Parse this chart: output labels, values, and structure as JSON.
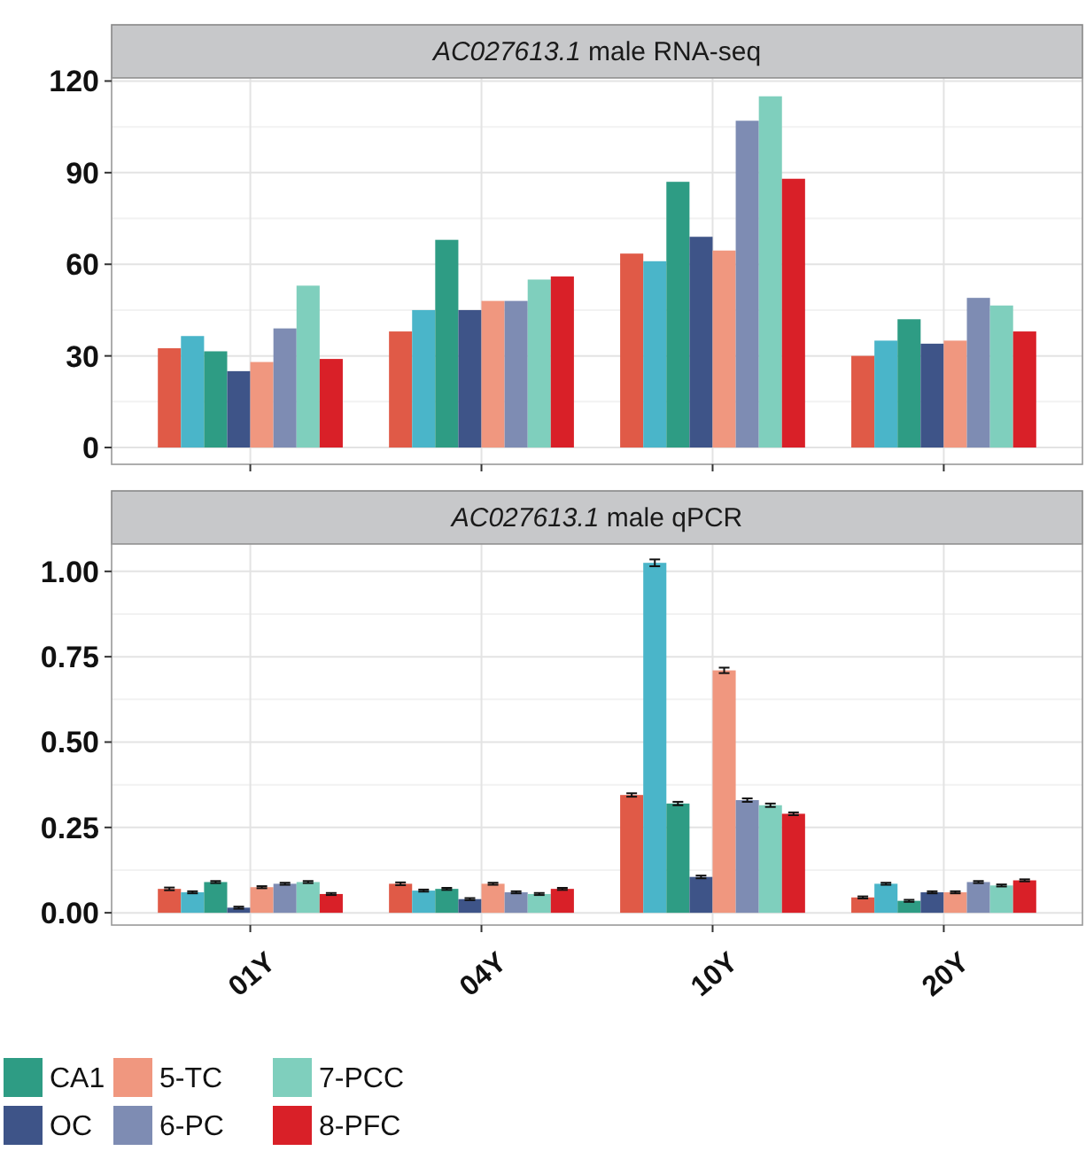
{
  "chart_data": [
    {
      "type": "bar",
      "title": "AC027613.1 male RNA-seq",
      "categories": [
        null,
        null,
        null,
        null
      ],
      "ylim": [
        -5.5,
        121
      ],
      "yticks": [
        0,
        30,
        60,
        90,
        120
      ],
      "grid": true,
      "tick_labels": "y",
      "series": [
        {
          "color": "#e05a47",
          "values": [
            32.5,
            38,
            63.5,
            30
          ]
        },
        {
          "color": "#4ab5c9",
          "values": [
            36.5,
            45,
            61,
            35
          ]
        },
        {
          "color": "#2e9c84",
          "values": [
            31.5,
            68,
            87,
            42
          ]
        },
        {
          "color": "#3e5488",
          "values": [
            25,
            45,
            69,
            34
          ]
        },
        {
          "color": "#f0977f",
          "values": [
            28,
            48,
            64.5,
            35
          ]
        },
        {
          "color": "#7e8cb3",
          "values": [
            39,
            48,
            107,
            49
          ]
        },
        {
          "color": "#7fcfbd",
          "values": [
            53,
            55,
            115,
            46.5
          ]
        },
        {
          "color": "#d92028",
          "values": [
            29,
            56,
            88,
            38
          ]
        }
      ]
    },
    {
      "type": "bar",
      "title": "AC027613.1 male qPCR",
      "categories": [
        "01Y",
        "04Y",
        "10Y",
        "20Y"
      ],
      "ylim": [
        -0.036,
        1.08
      ],
      "yticks": [
        {
          "value": 0,
          "label": "0.00"
        },
        {
          "value": 0.25,
          "label": "0.25"
        },
        {
          "value": 0.5,
          "label": "0.50"
        },
        {
          "value": 0.75,
          "label": "0.75"
        },
        {
          "value": 1,
          "label": "1.00"
        }
      ],
      "grid": true,
      "legend": "bottom left",
      "series": [
        {
          "color": "#e05a47",
          "values": [
            0.07,
            0.085,
            0.345,
            0.045
          ],
          "errors": [
            0.004,
            0.004,
            0.005,
            0.003
          ]
        },
        {
          "color": "#4ab5c9",
          "values": [
            0.06,
            0.065,
            1.025,
            0.085
          ],
          "errors": [
            0.003,
            0.003,
            0.01,
            0.003
          ]
        },
        {
          "name": "CA1",
          "color": "#2e9c84",
          "values": [
            0.09,
            0.07,
            0.32,
            0.035
          ],
          "errors": [
            0.003,
            0.003,
            0.005,
            0.003
          ]
        },
        {
          "name": "OC",
          "color": "#3e5488",
          "values": [
            0.015,
            0.04,
            0.105,
            0.06
          ],
          "errors": [
            0.003,
            0.003,
            0.004,
            0.003
          ]
        },
        {
          "name": "5-TC",
          "color": "#f0977f",
          "values": [
            0.075,
            0.085,
            0.71,
            0.06
          ],
          "errors": [
            0.003,
            0.003,
            0.008,
            0.003
          ]
        },
        {
          "name": "6-PC",
          "color": "#7e8cb3",
          "values": [
            0.085,
            0.06,
            0.33,
            0.09
          ],
          "errors": [
            0.003,
            0.003,
            0.005,
            0.003
          ]
        },
        {
          "name": "7-PCC",
          "color": "#7fcfbd",
          "values": [
            0.09,
            0.055,
            0.315,
            0.08
          ],
          "errors": [
            0.003,
            0.003,
            0.005,
            0.003
          ]
        },
        {
          "name": "8-PFC",
          "color": "#d92028",
          "values": [
            0.055,
            0.07,
            0.29,
            0.095
          ],
          "errors": [
            0.003,
            0.003,
            0.004,
            0.003
          ]
        }
      ]
    }
  ]
}
